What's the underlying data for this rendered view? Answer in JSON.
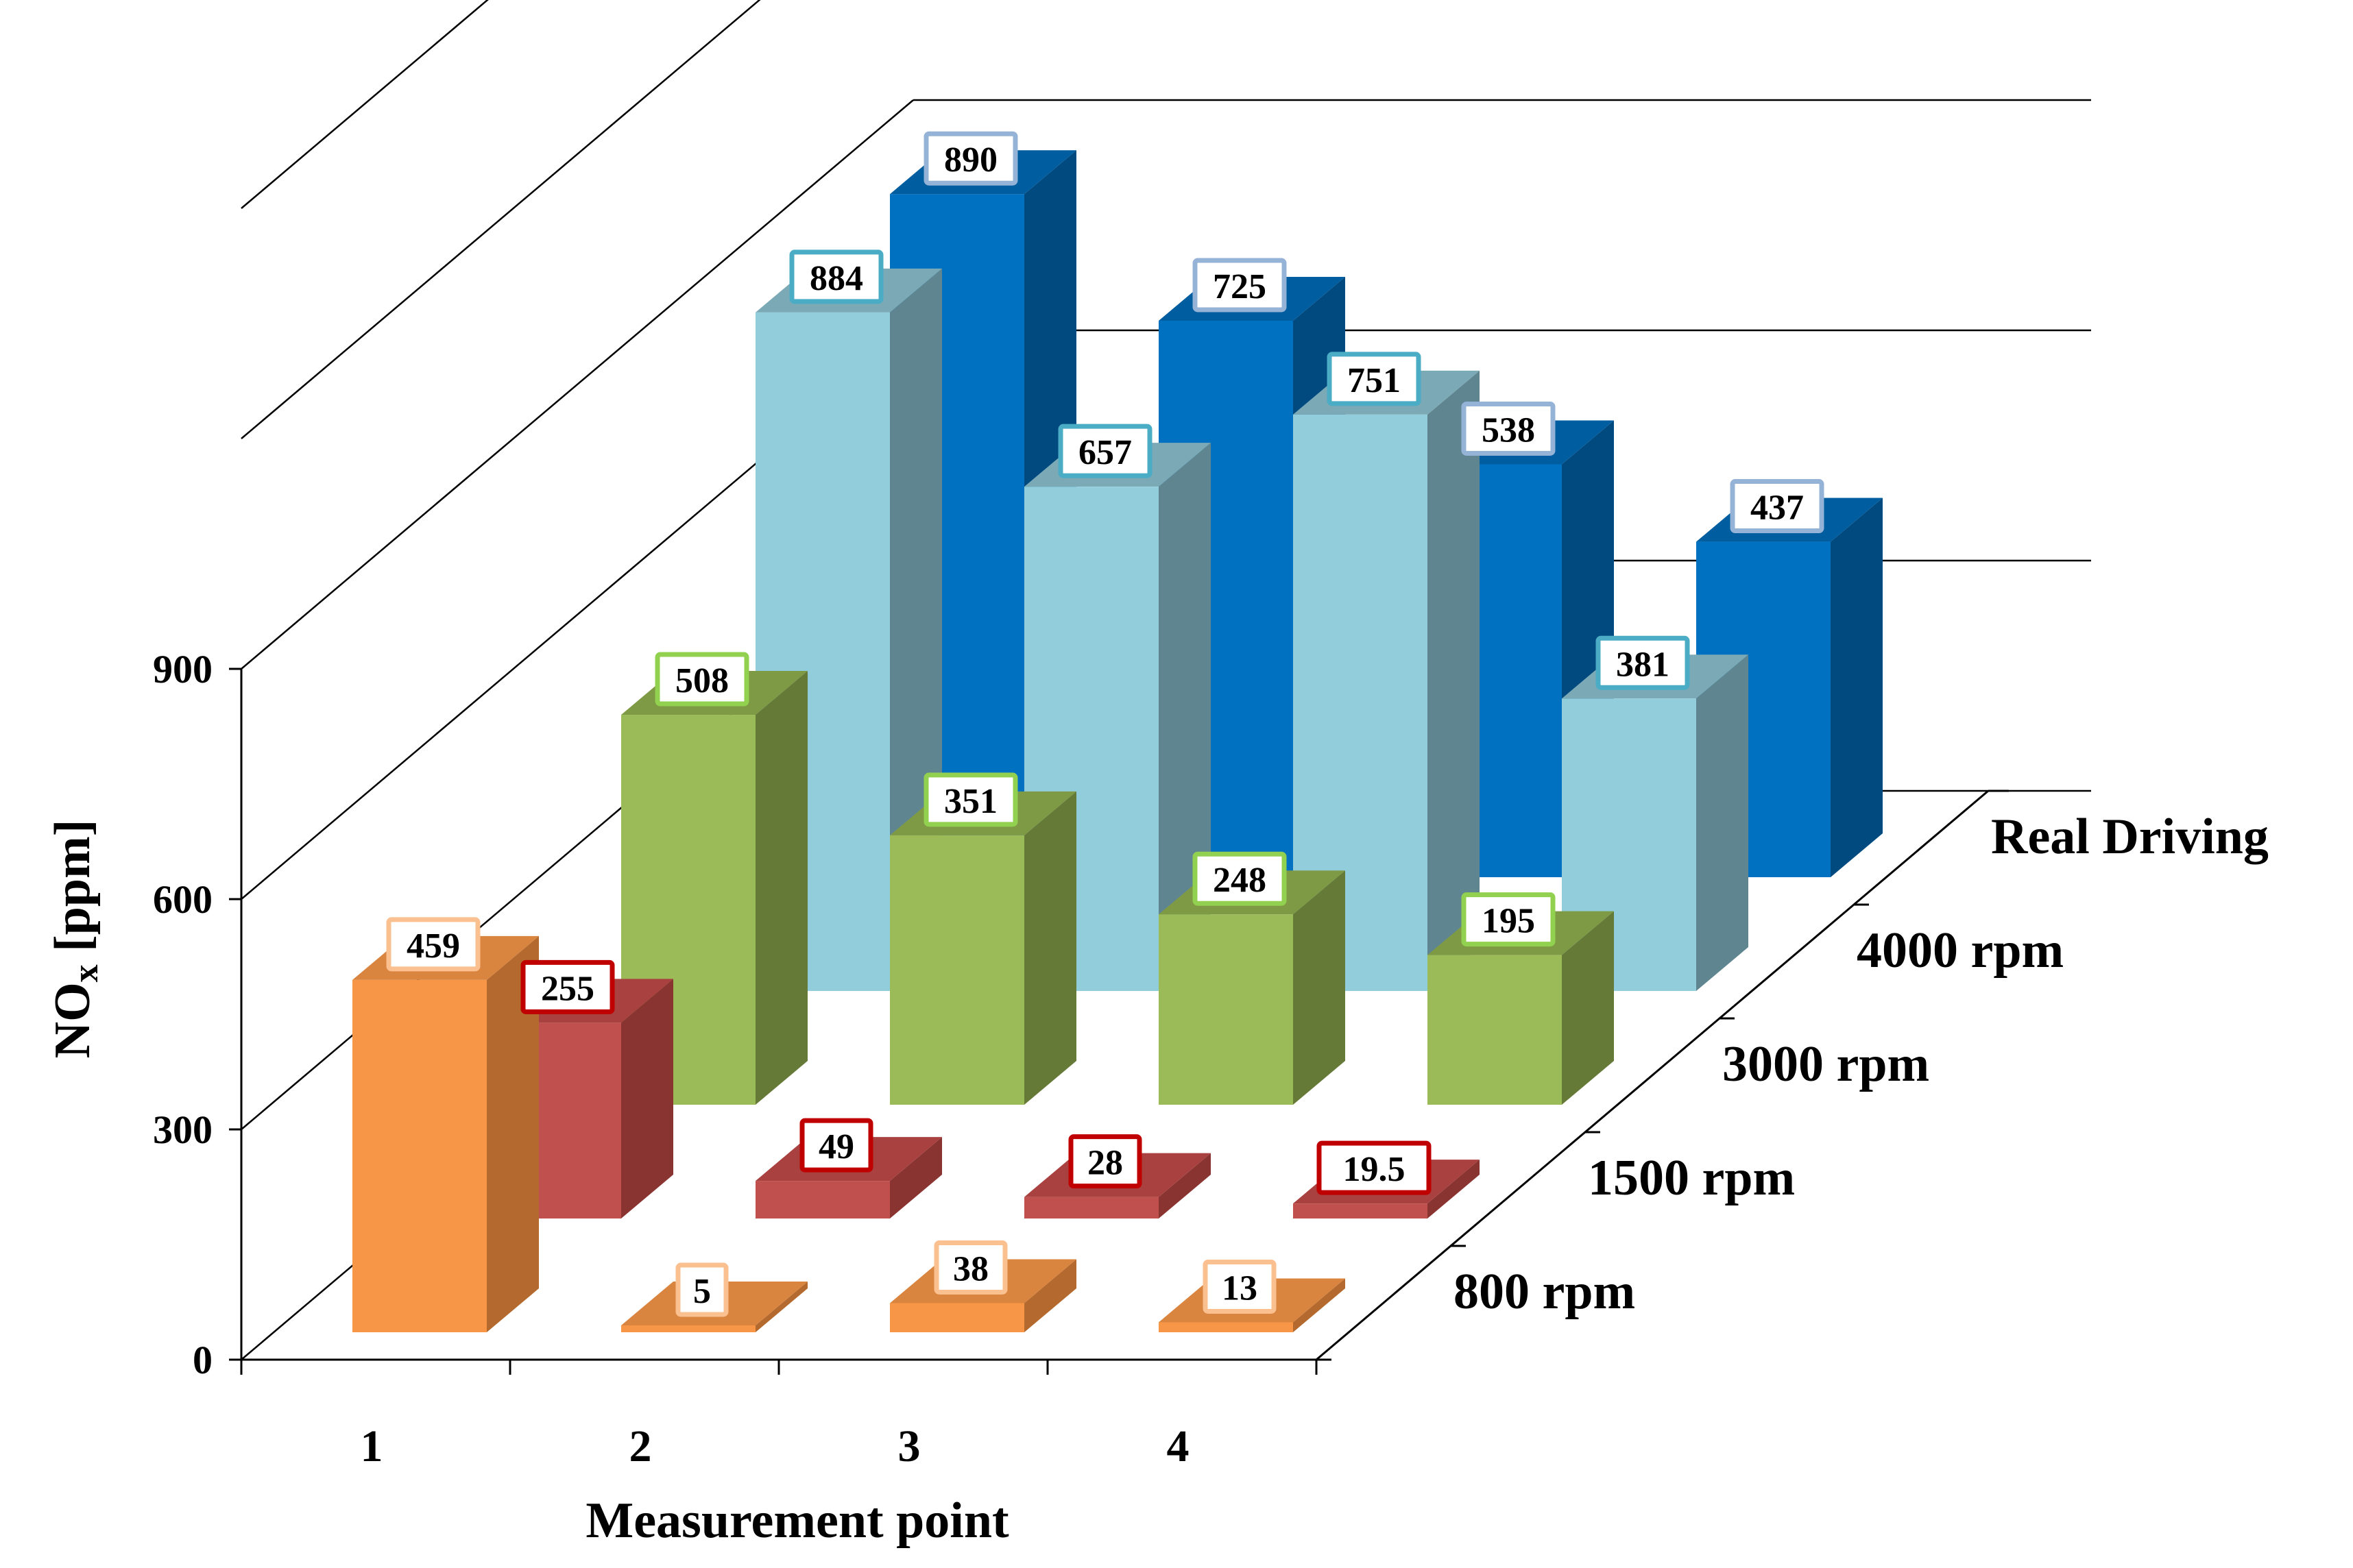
{
  "chart_data": {
    "type": "bar",
    "subtype": "3d-column",
    "title": "",
    "xlabel": "Measurement  point",
    "ylabel_main": "NO",
    "ylabel_sub": "x",
    "ylabel_rest": " [ppm]",
    "ylim": [
      0,
      900
    ],
    "yticks": [
      "0",
      "300",
      "600",
      "900"
    ],
    "categories": [
      "1",
      "2",
      "3",
      "4"
    ],
    "series": [
      {
        "name": "800 rpm",
        "values": [
          459,
          5,
          38,
          13
        ],
        "labels": [
          "459",
          "5",
          "38",
          "13"
        ],
        "color": "#F79646",
        "side": "#B46A2E",
        "top": "#D9843F",
        "border": "#FAC090"
      },
      {
        "name": "1500 rpm",
        "values": [
          255,
          49,
          28,
          19.5
        ],
        "labels": [
          "255",
          "49",
          "28",
          "19.5"
        ],
        "color": "#C0504D",
        "side": "#8A3432",
        "top": "#A8413F",
        "border": "#C00000"
      },
      {
        "name": "3000 rpm",
        "values": [
          508,
          351,
          248,
          195
        ],
        "labels": [
          "508",
          "351",
          "248",
          "195"
        ],
        "color": "#9BBB59",
        "side": "#667A38",
        "top": "#7F9A45",
        "border": "#92D050"
      },
      {
        "name": "4000 rpm",
        "values": [
          884,
          657,
          751,
          381
        ],
        "labels": [
          "884",
          "657",
          "751",
          "381"
        ],
        "color": "#92CDDC",
        "side": "#5F8690",
        "top": "#7BAAB6",
        "border": "#4BACC6"
      },
      {
        "name": "Real Driving",
        "values": [
          890,
          725,
          538,
          437
        ],
        "labels": [
          "890",
          "725",
          "538",
          "437"
        ],
        "color": "#0070C0",
        "side": "#004A80",
        "top": "#005DA0",
        "border": "#95B3D7"
      }
    ]
  }
}
